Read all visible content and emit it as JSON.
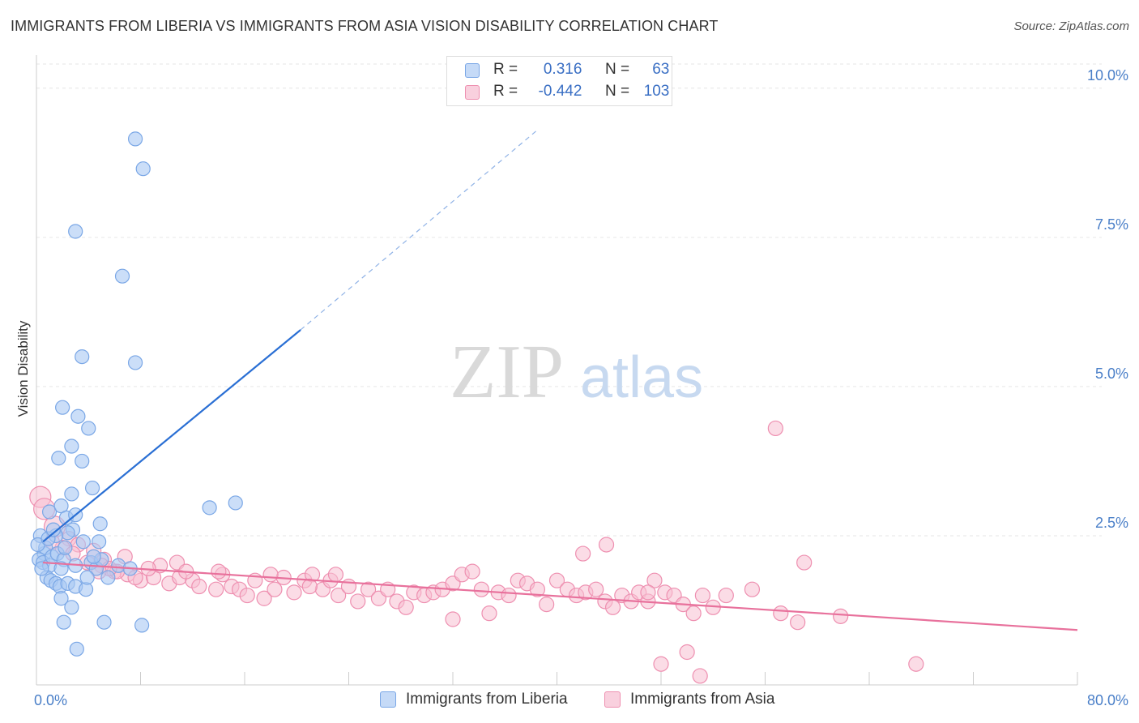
{
  "title": "IMMIGRANTS FROM LIBERIA VS IMMIGRANTS FROM ASIA VISION DISABILITY CORRELATION CHART",
  "source": "Source: ZipAtlas.com",
  "watermark": {
    "zip": "ZIP",
    "atlas": "atlas"
  },
  "colors": {
    "liberia_fill": "#a9c8f3",
    "liberia_stroke": "#7aa7e6",
    "liberia_line": "#2a6fd4",
    "asia_fill": "#f7c0d2",
    "asia_stroke": "#ee8fb0",
    "asia_line": "#e8719c",
    "grid": "#e6e6e6",
    "tick_label": "#4a7fc8"
  },
  "legend": {
    "rows": [
      {
        "r_label": "R =",
        "r_value": "0.316",
        "n_label": "N =",
        "n_value": "63"
      },
      {
        "r_label": "R =",
        "r_value": "-0.442",
        "n_label": "N =",
        "n_value": "103"
      }
    ]
  },
  "chart_data": {
    "type": "scatter",
    "title": "IMMIGRANTS FROM LIBERIA VS IMMIGRANTS FROM ASIA VISION DISABILITY CORRELATION CHART",
    "xlabel": "",
    "ylabel": "Vision Disability",
    "xlim": [
      0,
      80
    ],
    "ylim": [
      0,
      10.5
    ],
    "x_tick_labels": [
      "0.0%",
      "80.0%"
    ],
    "y_ticks": [
      2.5,
      5.0,
      7.5,
      10.0
    ],
    "y_tick_labels": [
      "2.5%",
      "5.0%",
      "7.5%",
      "10.0%"
    ],
    "grid": true,
    "legend_position": "top-center",
    "series": [
      {
        "name": "Immigrants from Liberia",
        "R": 0.316,
        "N": 63,
        "trend": {
          "x0": 0.5,
          "y0": 2.4,
          "x1": 20.3,
          "y1": 5.95,
          "dash_x1": 38.5,
          "dash_y1": 9.3
        },
        "points": [
          [
            7.6,
            9.15
          ],
          [
            8.2,
            8.65
          ],
          [
            3.0,
            7.6
          ],
          [
            6.6,
            6.85
          ],
          [
            3.5,
            5.5
          ],
          [
            7.6,
            5.4
          ],
          [
            2.0,
            4.65
          ],
          [
            3.2,
            4.5
          ],
          [
            4.0,
            4.3
          ],
          [
            3.5,
            3.75
          ],
          [
            1.7,
            3.8
          ],
          [
            2.7,
            4.0
          ],
          [
            4.3,
            3.3
          ],
          [
            2.7,
            3.2
          ],
          [
            13.3,
            2.97
          ],
          [
            15.3,
            3.05
          ],
          [
            0.3,
            2.5
          ],
          [
            0.6,
            2.2
          ],
          [
            1.0,
            2.9
          ],
          [
            1.9,
            3.0
          ],
          [
            2.3,
            2.8
          ],
          [
            2.8,
            2.6
          ],
          [
            2.4,
            2.55
          ],
          [
            1.5,
            2.5
          ],
          [
            3.0,
            2.85
          ],
          [
            4.9,
            2.7
          ],
          [
            3.6,
            2.4
          ],
          [
            4.8,
            2.4
          ],
          [
            0.7,
            2.3
          ],
          [
            0.2,
            2.1
          ],
          [
            0.5,
            2.05
          ],
          [
            1.0,
            2.0
          ],
          [
            1.2,
            2.15
          ],
          [
            1.6,
            2.2
          ],
          [
            2.1,
            2.1
          ],
          [
            1.9,
            1.95
          ],
          [
            3.0,
            2.0
          ],
          [
            4.2,
            2.05
          ],
          [
            4.6,
            1.95
          ],
          [
            5.0,
            2.1
          ],
          [
            6.3,
            2.0
          ],
          [
            7.2,
            1.95
          ],
          [
            0.8,
            1.8
          ],
          [
            1.1,
            1.75
          ],
          [
            1.5,
            1.7
          ],
          [
            1.8,
            1.65
          ],
          [
            2.4,
            1.7
          ],
          [
            3.0,
            1.65
          ],
          [
            3.8,
            1.6
          ],
          [
            3.9,
            1.8
          ],
          [
            5.5,
            1.8
          ],
          [
            1.9,
            1.45
          ],
          [
            2.7,
            1.3
          ],
          [
            2.1,
            1.05
          ],
          [
            5.2,
            1.05
          ],
          [
            8.1,
            1.0
          ],
          [
            3.1,
            0.6
          ],
          [
            0.1,
            2.35
          ],
          [
            0.9,
            2.45
          ],
          [
            1.3,
            2.6
          ],
          [
            2.2,
            2.3
          ],
          [
            0.4,
            1.95
          ],
          [
            4.4,
            2.15
          ]
        ]
      },
      {
        "name": "Immigrants from Asia",
        "R": -0.442,
        "N": 103,
        "trend": {
          "x0": 0.5,
          "y0": 2.05,
          "x1": 80,
          "y1": 0.92
        },
        "points": [
          [
            0.3,
            3.15
          ],
          [
            0.6,
            2.95
          ],
          [
            1.4,
            2.65
          ],
          [
            2.5,
            2.45
          ],
          [
            3.2,
            2.35
          ],
          [
            4.4,
            2.25
          ],
          [
            5.2,
            2.1
          ],
          [
            6.8,
            2.15
          ],
          [
            10.8,
            2.05
          ],
          [
            2.0,
            2.3
          ],
          [
            2.8,
            2.2
          ],
          [
            1.2,
            2.4
          ],
          [
            3.9,
            2.05
          ],
          [
            5.0,
            2.0
          ],
          [
            6.0,
            1.9
          ],
          [
            7.0,
            1.85
          ],
          [
            8.0,
            1.75
          ],
          [
            9.0,
            1.8
          ],
          [
            10.2,
            1.7
          ],
          [
            11.0,
            1.8
          ],
          [
            12.0,
            1.75
          ],
          [
            12.5,
            1.65
          ],
          [
            13.8,
            1.6
          ],
          [
            14.3,
            1.85
          ],
          [
            15.0,
            1.65
          ],
          [
            15.6,
            1.6
          ],
          [
            16.2,
            1.5
          ],
          [
            16.8,
            1.75
          ],
          [
            17.5,
            1.45
          ],
          [
            18.3,
            1.6
          ],
          [
            19.0,
            1.8
          ],
          [
            19.8,
            1.55
          ],
          [
            20.6,
            1.75
          ],
          [
            21.2,
            1.85
          ],
          [
            22.0,
            1.6
          ],
          [
            22.6,
            1.75
          ],
          [
            23.2,
            1.5
          ],
          [
            24.0,
            1.65
          ],
          [
            24.7,
            1.4
          ],
          [
            25.5,
            1.6
          ],
          [
            26.3,
            1.45
          ],
          [
            27.0,
            1.6
          ],
          [
            27.7,
            1.4
          ],
          [
            28.4,
            1.3
          ],
          [
            29.0,
            1.55
          ],
          [
            29.8,
            1.5
          ],
          [
            30.5,
            1.55
          ],
          [
            31.2,
            1.6
          ],
          [
            32.0,
            1.7
          ],
          [
            32.7,
            1.85
          ],
          [
            33.5,
            1.9
          ],
          [
            34.2,
            1.6
          ],
          [
            34.8,
            1.2
          ],
          [
            35.5,
            1.55
          ],
          [
            36.3,
            1.5
          ],
          [
            37.0,
            1.75
          ],
          [
            37.7,
            1.7
          ],
          [
            38.5,
            1.6
          ],
          [
            39.2,
            1.35
          ],
          [
            40.0,
            1.75
          ],
          [
            40.8,
            1.6
          ],
          [
            41.5,
            1.5
          ],
          [
            42.2,
            1.55
          ],
          [
            43.0,
            1.6
          ],
          [
            43.7,
            1.4
          ],
          [
            44.3,
            1.3
          ],
          [
            45.0,
            1.5
          ],
          [
            45.7,
            1.4
          ],
          [
            46.3,
            1.55
          ],
          [
            47.0,
            1.4
          ],
          [
            47.5,
            1.75
          ],
          [
            48.3,
            1.55
          ],
          [
            49.0,
            1.5
          ],
          [
            49.7,
            1.35
          ],
          [
            50.5,
            1.2
          ],
          [
            51.2,
            1.5
          ],
          [
            52.0,
            1.3
          ],
          [
            23.0,
            1.85
          ],
          [
            21.0,
            1.65
          ],
          [
            18.0,
            1.85
          ],
          [
            14.0,
            1.9
          ],
          [
            11.5,
            1.9
          ],
          [
            9.5,
            2.0
          ],
          [
            8.6,
            1.95
          ],
          [
            7.6,
            1.8
          ],
          [
            6.2,
            1.9
          ],
          [
            5.6,
            1.95
          ],
          [
            4.8,
            1.9
          ],
          [
            42.0,
            2.2
          ],
          [
            43.8,
            2.35
          ],
          [
            47.0,
            1.55
          ],
          [
            55.0,
            1.6
          ],
          [
            57.2,
            1.2
          ],
          [
            61.8,
            1.15
          ],
          [
            56.8,
            4.3
          ],
          [
            59.0,
            2.05
          ],
          [
            53.0,
            1.5
          ],
          [
            58.5,
            1.05
          ],
          [
            50.0,
            0.55
          ],
          [
            48.0,
            0.35
          ],
          [
            51.0,
            0.15
          ],
          [
            67.6,
            0.35
          ],
          [
            32.0,
            1.1
          ]
        ]
      }
    ]
  },
  "bottom_legend": {
    "liberia": "Immigrants from Liberia",
    "asia": "Immigrants from Asia"
  }
}
